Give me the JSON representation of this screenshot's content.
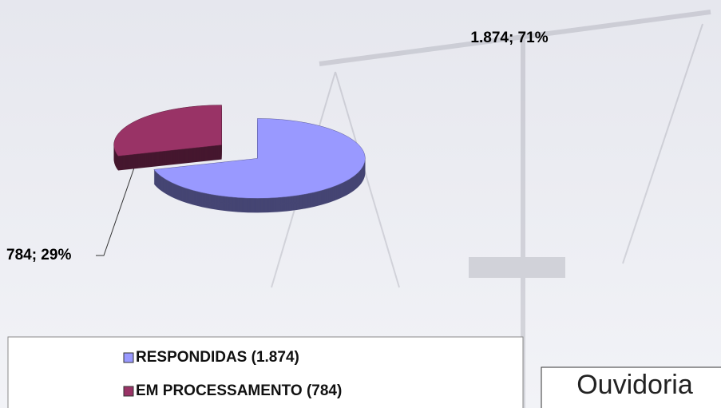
{
  "chart_data": {
    "type": "pie",
    "categories": [
      "RESPONDIDAS (1.874)",
      "EM PROCESSAMENTO (784)"
    ],
    "values": [
      1874,
      784
    ],
    "value_labels": [
      "1.874; 71%",
      "784; 29%"
    ],
    "colors": [
      "#9999ff",
      "#993366"
    ],
    "legend": "bottom"
  },
  "logo": {
    "text": "Ouvidoria"
  }
}
